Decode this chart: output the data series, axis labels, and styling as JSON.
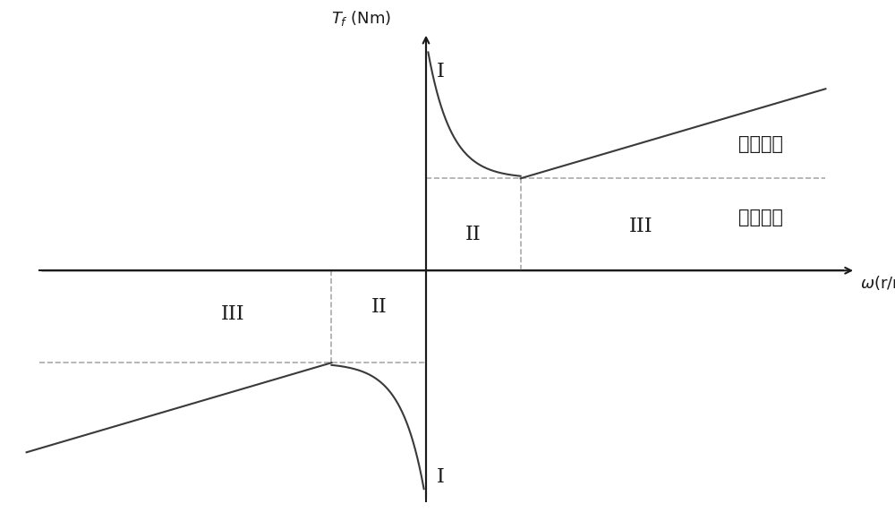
{
  "background_color": "#ffffff",
  "axis_color": "#1a1a1a",
  "curve_color": "#3a3a3a",
  "dashed_color": "#aaaaaa",
  "text_nian": "粘滩摩擦",
  "text_ku": "库仓摩擦",
  "figsize": [
    10.0,
    5.91
  ],
  "dpi": 100,
  "xlim": [
    -9.5,
    10.5
  ],
  "ylim": [
    -10.0,
    10.5
  ],
  "x_origin": 0.0,
  "y_origin": 0.0,
  "x_min_pos": 2.2,
  "y_static": 9.0,
  "y_coulomb": 3.8,
  "x_axis_end": 10.0,
  "x_axis_start": -9.0,
  "y_axis_end": 9.8,
  "y_axis_start": -9.5
}
